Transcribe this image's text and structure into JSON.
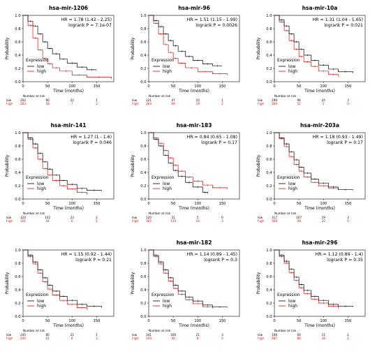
{
  "panels": [
    {
      "title": "hsa-mir-1206",
      "hr_text": "HR = 1.78 (1.42 - 2.25)",
      "p_text": "logrank P = 7.1e-07",
      "risk_low": [
        "202",
        "90",
        "22",
        "1"
      ],
      "risk_high": [
        "283",
        "56",
        "7",
        "2"
      ],
      "low_curve": [
        [
          0,
          1
        ],
        [
          10,
          0.91
        ],
        [
          20,
          0.84
        ],
        [
          30,
          0.72
        ],
        [
          40,
          0.6
        ],
        [
          50,
          0.5
        ],
        [
          60,
          0.42
        ],
        [
          75,
          0.34
        ],
        [
          90,
          0.28
        ],
        [
          110,
          0.22
        ],
        [
          130,
          0.18
        ],
        [
          150,
          0.18
        ]
      ],
      "high_curve": [
        [
          0,
          1
        ],
        [
          10,
          0.85
        ],
        [
          20,
          0.66
        ],
        [
          30,
          0.48
        ],
        [
          40,
          0.35
        ],
        [
          50,
          0.27
        ],
        [
          60,
          0.21
        ],
        [
          75,
          0.16
        ],
        [
          100,
          0.1
        ],
        [
          130,
          0.07
        ],
        [
          180,
          0.04
        ]
      ]
    },
    {
      "title": "hsa-mir-96",
      "hr_text": "HR = 1.51 (1.15 - 1.99)",
      "p_text": "logrank P = 0.0026",
      "risk_low": [
        "121",
        "47",
        "10",
        "1"
      ],
      "risk_high": [
        "364",
        "99",
        "19",
        "2"
      ],
      "low_curve": [
        [
          0,
          1
        ],
        [
          10,
          0.92
        ],
        [
          20,
          0.83
        ],
        [
          30,
          0.72
        ],
        [
          40,
          0.62
        ],
        [
          50,
          0.54
        ],
        [
          60,
          0.46
        ],
        [
          75,
          0.38
        ],
        [
          90,
          0.32
        ],
        [
          110,
          0.27
        ],
        [
          130,
          0.24
        ],
        [
          150,
          0.24
        ]
      ],
      "high_curve": [
        [
          0,
          1
        ],
        [
          10,
          0.88
        ],
        [
          20,
          0.72
        ],
        [
          30,
          0.56
        ],
        [
          40,
          0.44
        ],
        [
          50,
          0.35
        ],
        [
          60,
          0.28
        ],
        [
          75,
          0.21
        ],
        [
          100,
          0.15
        ],
        [
          130,
          0.12
        ],
        [
          160,
          0.1
        ]
      ]
    },
    {
      "title": "hsa-mir-10a",
      "hr_text": "HR = 1.31 (1.04 - 1.65)",
      "p_text": "logrank P = 0.021",
      "risk_low": [
        "296",
        "94",
        "24",
        "3"
      ],
      "risk_high": [
        "189",
        "52",
        "5",
        "0"
      ],
      "low_curve": [
        [
          0,
          1
        ],
        [
          10,
          0.93
        ],
        [
          20,
          0.84
        ],
        [
          30,
          0.72
        ],
        [
          40,
          0.6
        ],
        [
          50,
          0.49
        ],
        [
          60,
          0.4
        ],
        [
          75,
          0.32
        ],
        [
          90,
          0.25
        ],
        [
          110,
          0.19
        ],
        [
          130,
          0.15
        ],
        [
          160,
          0.13
        ]
      ],
      "high_curve": [
        [
          0,
          1
        ],
        [
          10,
          0.9
        ],
        [
          20,
          0.77
        ],
        [
          30,
          0.62
        ],
        [
          40,
          0.49
        ],
        [
          50,
          0.38
        ],
        [
          60,
          0.3
        ],
        [
          75,
          0.23
        ],
        [
          90,
          0.16
        ],
        [
          110,
          0.11
        ],
        [
          130,
          0.08
        ]
      ]
    },
    {
      "title": "hsa-mir-141",
      "hr_text": "HR = 1.27 (1 - 1.6)",
      "p_text": "logrank P = 0.046",
      "risk_low": [
        "324",
        "102",
        "23",
        "2"
      ],
      "risk_high": [
        "161",
        "44",
        "6",
        "1"
      ],
      "low_curve": [
        [
          0,
          1
        ],
        [
          10,
          0.92
        ],
        [
          20,
          0.83
        ],
        [
          30,
          0.69
        ],
        [
          40,
          0.56
        ],
        [
          50,
          0.45
        ],
        [
          60,
          0.36
        ],
        [
          75,
          0.28
        ],
        [
          90,
          0.22
        ],
        [
          110,
          0.16
        ],
        [
          130,
          0.13
        ],
        [
          160,
          0.12
        ]
      ],
      "high_curve": [
        [
          0,
          1
        ],
        [
          10,
          0.9
        ],
        [
          20,
          0.77
        ],
        [
          30,
          0.6
        ],
        [
          40,
          0.46
        ],
        [
          50,
          0.36
        ],
        [
          60,
          0.28
        ],
        [
          75,
          0.2
        ],
        [
          90,
          0.15
        ],
        [
          110,
          0.1
        ],
        [
          130,
          0.07
        ]
      ]
    },
    {
      "title": "hsa-mir-183",
      "hr_text": "HR = 0.84 (0.65 - 1.08)",
      "p_text": "logrank P = 0.17",
      "risk_low": [
        "120",
        "31",
        "5",
        "0"
      ],
      "risk_high": [
        "365",
        "113",
        "24",
        "3"
      ],
      "low_curve": [
        [
          0,
          1
        ],
        [
          10,
          0.9
        ],
        [
          20,
          0.8
        ],
        [
          30,
          0.66
        ],
        [
          40,
          0.54
        ],
        [
          50,
          0.43
        ],
        [
          60,
          0.34
        ],
        [
          75,
          0.25
        ],
        [
          90,
          0.18
        ],
        [
          110,
          0.1
        ],
        [
          120,
          0.08
        ]
      ],
      "high_curve": [
        [
          0,
          1
        ],
        [
          10,
          0.92
        ],
        [
          20,
          0.84
        ],
        [
          30,
          0.73
        ],
        [
          40,
          0.62
        ],
        [
          50,
          0.51
        ],
        [
          60,
          0.42
        ],
        [
          75,
          0.33
        ],
        [
          90,
          0.27
        ],
        [
          110,
          0.21
        ],
        [
          130,
          0.17
        ],
        [
          160,
          0.15
        ]
      ]
    },
    {
      "title": "hsa-mir-203a",
      "hr_text": "HR = 1.18 (0.93 - 1.49)",
      "p_text": "logrank P = 0.17",
      "risk_low": [
        "317",
        "107",
        "19",
        "3"
      ],
      "risk_high": [
        "168",
        "39",
        "10",
        "0"
      ],
      "low_curve": [
        [
          0,
          1
        ],
        [
          10,
          0.92
        ],
        [
          20,
          0.83
        ],
        [
          30,
          0.71
        ],
        [
          40,
          0.59
        ],
        [
          50,
          0.48
        ],
        [
          60,
          0.39
        ],
        [
          75,
          0.3
        ],
        [
          90,
          0.24
        ],
        [
          110,
          0.18
        ],
        [
          130,
          0.14
        ],
        [
          160,
          0.13
        ]
      ],
      "high_curve": [
        [
          0,
          1
        ],
        [
          10,
          0.91
        ],
        [
          20,
          0.79
        ],
        [
          30,
          0.64
        ],
        [
          40,
          0.52
        ],
        [
          50,
          0.42
        ],
        [
          60,
          0.33
        ],
        [
          75,
          0.25
        ],
        [
          90,
          0.2
        ],
        [
          110,
          0.16
        ],
        [
          130,
          0.14
        ]
      ]
    },
    {
      "title": "",
      "hr_text": "HR = 1.15 (0.92 - 1.44)",
      "p_text": "logrank P = 0.21",
      "risk_low": [
        "245",
        "85",
        "21",
        "1"
      ],
      "risk_high": [
        "240",
        "61",
        "8",
        "2"
      ],
      "low_curve": [
        [
          0,
          1
        ],
        [
          10,
          0.92
        ],
        [
          20,
          0.82
        ],
        [
          30,
          0.7
        ],
        [
          40,
          0.58
        ],
        [
          50,
          0.47
        ],
        [
          60,
          0.38
        ],
        [
          75,
          0.3
        ],
        [
          90,
          0.24
        ],
        [
          110,
          0.18
        ],
        [
          130,
          0.15
        ],
        [
          160,
          0.13
        ]
      ],
      "high_curve": [
        [
          0,
          1
        ],
        [
          10,
          0.9
        ],
        [
          20,
          0.79
        ],
        [
          30,
          0.65
        ],
        [
          40,
          0.52
        ],
        [
          50,
          0.41
        ],
        [
          60,
          0.32
        ],
        [
          75,
          0.24
        ],
        [
          90,
          0.18
        ],
        [
          110,
          0.13
        ],
        [
          130,
          0.1
        ]
      ]
    },
    {
      "title": "hsa-mir-182",
      "hr_text": "HR = 1.14 (0.89 - 1.45)",
      "p_text": "logrank P = 0.3",
      "risk_low": [
        "341",
        "106",
        "21",
        "3"
      ],
      "risk_high": [
        "144",
        "40",
        "8",
        "0"
      ],
      "low_curve": [
        [
          0,
          1
        ],
        [
          10,
          0.92
        ],
        [
          20,
          0.82
        ],
        [
          30,
          0.7
        ],
        [
          40,
          0.58
        ],
        [
          50,
          0.47
        ],
        [
          60,
          0.38
        ],
        [
          75,
          0.29
        ],
        [
          90,
          0.23
        ],
        [
          110,
          0.17
        ],
        [
          130,
          0.14
        ],
        [
          160,
          0.13
        ]
      ],
      "high_curve": [
        [
          0,
          1
        ],
        [
          10,
          0.9
        ],
        [
          20,
          0.79
        ],
        [
          30,
          0.65
        ],
        [
          40,
          0.53
        ],
        [
          50,
          0.42
        ],
        [
          60,
          0.33
        ],
        [
          75,
          0.25
        ],
        [
          90,
          0.19
        ],
        [
          110,
          0.14
        ],
        [
          130,
          0.12
        ]
      ]
    },
    {
      "title": "hsa-mir-296",
      "hr_text": "HR = 1.12 (0.89 - 1.4)",
      "p_text": "logrank P = 0.35",
      "risk_low": [
        "198",
        "60",
        "11",
        "2"
      ],
      "risk_high": [
        "287",
        "86",
        "18",
        "1"
      ],
      "low_curve": [
        [
          0,
          1
        ],
        [
          10,
          0.92
        ],
        [
          20,
          0.83
        ],
        [
          30,
          0.71
        ],
        [
          40,
          0.59
        ],
        [
          50,
          0.48
        ],
        [
          60,
          0.39
        ],
        [
          75,
          0.3
        ],
        [
          90,
          0.24
        ],
        [
          110,
          0.18
        ],
        [
          130,
          0.15
        ],
        [
          160,
          0.14
        ]
      ],
      "high_curve": [
        [
          0,
          1
        ],
        [
          10,
          0.9
        ],
        [
          20,
          0.8
        ],
        [
          30,
          0.66
        ],
        [
          40,
          0.54
        ],
        [
          50,
          0.43
        ],
        [
          60,
          0.34
        ],
        [
          75,
          0.26
        ],
        [
          90,
          0.2
        ],
        [
          110,
          0.15
        ],
        [
          130,
          0.12
        ]
      ]
    }
  ],
  "labels": {
    "ylabel": "Probability",
    "xlabel": "Time (months)",
    "legend_title": "Expression",
    "legend_low": "low",
    "legend_high": "high",
    "number_at_risk": "Number at risk",
    "row_low": "low",
    "row_high": "high",
    "yticks": [
      "0.0",
      "0.2",
      "0.4",
      "0.6",
      "0.8",
      "1.0"
    ],
    "xticks": [
      "0",
      "50",
      "100",
      "150"
    ]
  },
  "colors": {
    "low": "#000000",
    "high": "#ff0000"
  },
  "chart_data": {
    "type": "line",
    "xlabel": "Time (months)",
    "ylabel": "Probability",
    "xlim": [
      0,
      185
    ],
    "ylim": [
      0,
      1
    ],
    "xticks": [
      0,
      50,
      100,
      150
    ],
    "yticks": [
      0,
      0.2,
      0.4,
      0.6,
      0.8,
      1.0
    ],
    "legend": {
      "title": "Expression",
      "entries": [
        "low",
        "high"
      ],
      "placement": "bottom-left"
    },
    "grid": false,
    "panels_ref": "panels"
  }
}
